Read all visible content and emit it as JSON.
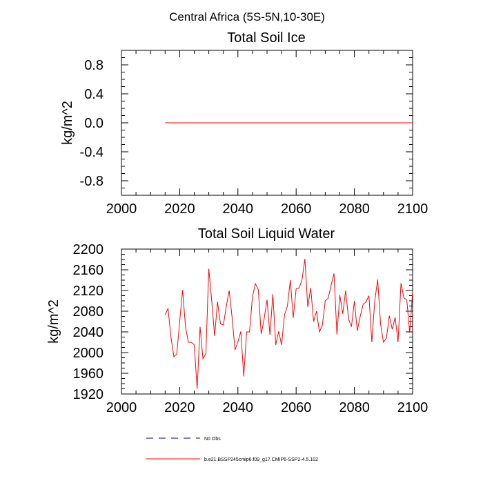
{
  "figure": {
    "title": "Central Africa (5S-5N,10-30E)"
  },
  "chart_data": [
    {
      "type": "line",
      "title": "Total Soil Ice",
      "xlabel": "",
      "ylabel": "kg/m^2",
      "xlim": [
        2000,
        2100
      ],
      "ylim": [
        -1.0,
        1.0
      ],
      "x_ticks": [
        "2000",
        "2020",
        "2040",
        "2060",
        "2080",
        "2100"
      ],
      "x_tick_values": [
        2000,
        2020,
        2040,
        2060,
        2080,
        2100
      ],
      "y_ticks": [
        "-0.8",
        "-0.4",
        "0.0",
        "0.4",
        "0.8"
      ],
      "y_tick_values": [
        -0.8,
        -0.4,
        0.0,
        0.4,
        0.8
      ],
      "series": [
        {
          "name": "b.e21.BSSP245cmip6.f09_g17.CMIP6-SSP2-4.5.102",
          "color": "#ff0000",
          "x": [
            2015,
            2100
          ],
          "values": [
            0.0,
            0.0
          ]
        }
      ]
    },
    {
      "type": "line",
      "title": "Total Soil Liquid Water",
      "xlabel": "",
      "ylabel": "kg/m^2",
      "xlim": [
        2000,
        2100
      ],
      "ylim": [
        1920,
        2200
      ],
      "x_ticks": [
        "2000",
        "2020",
        "2040",
        "2060",
        "2080",
        "2100"
      ],
      "x_tick_values": [
        2000,
        2020,
        2040,
        2060,
        2080,
        2100
      ],
      "y_ticks": [
        "1920",
        "1960",
        "2000",
        "2040",
        "2080",
        "2120",
        "2160",
        "2200"
      ],
      "y_tick_values": [
        1920,
        1960,
        2000,
        2040,
        2080,
        2120,
        2160,
        2200
      ],
      "series": [
        {
          "name": "b.e21.BSSP245cmip6.f09_g17.CMIP6-SSP2-4.5.102",
          "color": "#ff0000",
          "x": [
            2015,
            2016,
            2017,
            2018,
            2019,
            2020,
            2021,
            2022,
            2023,
            2024,
            2025,
            2026,
            2027,
            2028,
            2029,
            2030,
            2031,
            2032,
            2033,
            2034,
            2035,
            2036,
            2037,
            2038,
            2039,
            2040,
            2041,
            2042,
            2043,
            2044,
            2045,
            2046,
            2047,
            2048,
            2049,
            2050,
            2051,
            2052,
            2053,
            2054,
            2055,
            2056,
            2057,
            2058,
            2059,
            2060,
            2061,
            2062,
            2063,
            2064,
            2065,
            2066,
            2067,
            2068,
            2069,
            2070,
            2071,
            2072,
            2073,
            2074,
            2075,
            2076,
            2077,
            2078,
            2079,
            2080,
            2081,
            2082,
            2083,
            2084,
            2085,
            2086,
            2087,
            2088,
            2089,
            2090,
            2091,
            2092,
            2093,
            2094,
            2095,
            2096,
            2097,
            2098,
            2099,
            2100
          ],
          "values": [
            2073,
            2085,
            2030,
            1992,
            1997,
            2060,
            2121,
            2050,
            2020,
            2020,
            2015,
            1930,
            2050,
            1988,
            1998,
            2162,
            2100,
            2032,
            2098,
            2056,
            2053,
            2089,
            2120,
            2068,
            2005,
            2021,
            2041,
            1954,
            2040,
            2040,
            2108,
            2133,
            2122,
            2036,
            2065,
            2102,
            2034,
            2113,
            2015,
            2041,
            2015,
            2073,
            2090,
            2140,
            2067,
            2123,
            2125,
            2140,
            2181,
            2088,
            2125,
            2060,
            2080,
            2040,
            2053,
            2100,
            2105,
            2130,
            2153,
            2035,
            2111,
            2075,
            2120,
            2065,
            2050,
            2100,
            2042,
            2070,
            2093,
            2098,
            2110,
            2020,
            2100,
            2141,
            2055,
            2020,
            2028,
            2071,
            2045,
            2068,
            2020,
            2134,
            2106,
            2102,
            2038,
            2118
          ]
        }
      ]
    }
  ],
  "legend": {
    "entries": [
      {
        "label": "No Obs",
        "color": "#00008b",
        "style": "dashed"
      },
      {
        "label": "b.e21.BSSP245cmip6.f09_g17.CMIP6-SSP2-4.5.102",
        "color": "#ff0000",
        "style": "solid"
      }
    ]
  }
}
